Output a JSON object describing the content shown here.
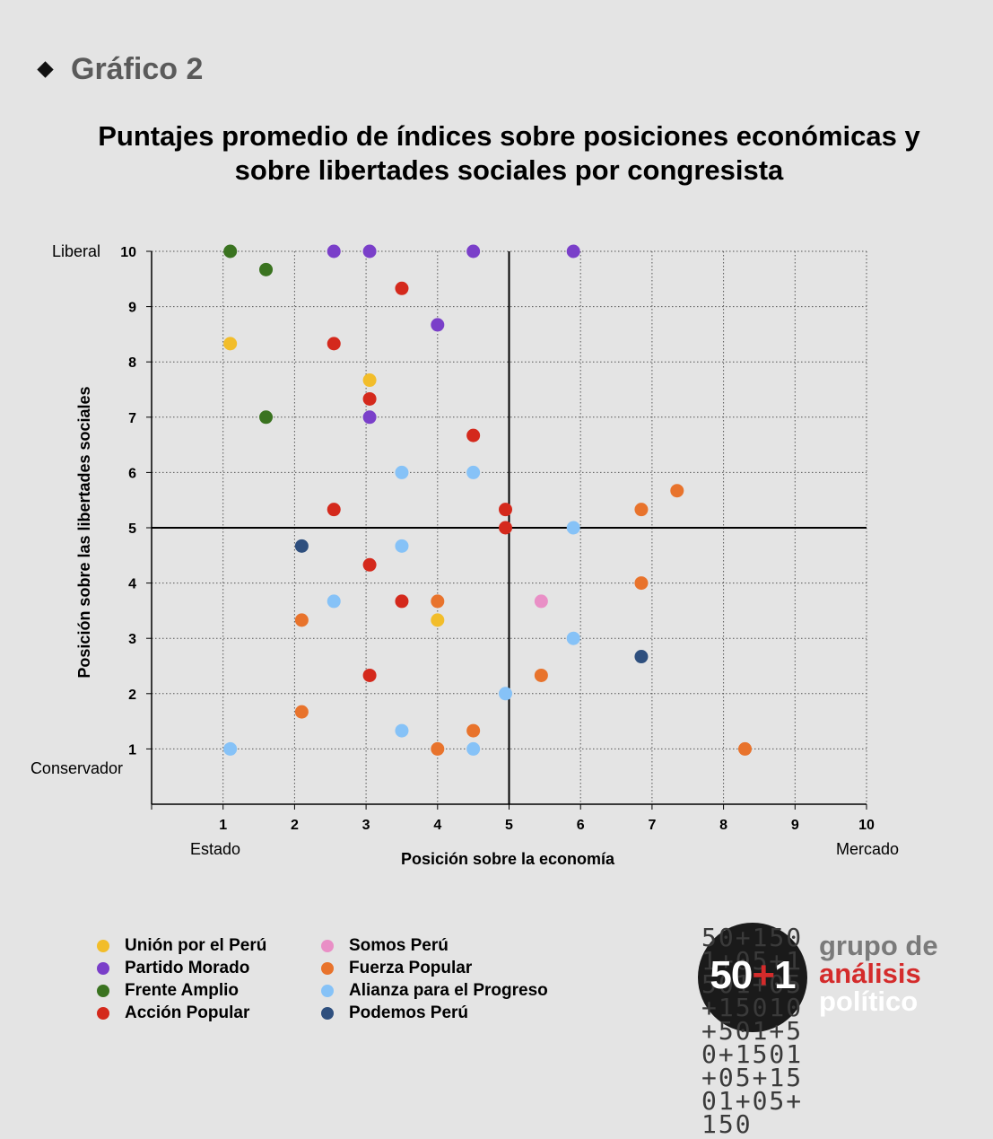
{
  "header": {
    "label": "Gráfico 2"
  },
  "chart_data": {
    "type": "scatter",
    "title": "Puntajes promedio de índices sobre posiciones económicas y sobre libertades sociales por congresista",
    "xlabel": "Posición sobre la economía",
    "ylabel": "Posición sobre las libertades sociales",
    "x_left_annotation": "Estado",
    "x_right_annotation": "Mercado",
    "y_top_annotation": "Liberal",
    "y_bottom_annotation": "Conservador",
    "xlim": [
      0,
      10
    ],
    "ylim": [
      0,
      10
    ],
    "x_ticks": [
      "1",
      "2",
      "3",
      "4",
      "5",
      "6",
      "7",
      "8",
      "9",
      "10"
    ],
    "y_ticks": [
      "1",
      "2",
      "3",
      "4",
      "5",
      "6",
      "7",
      "8",
      "9",
      "10"
    ],
    "grid": true,
    "reference_lines": {
      "x": 5,
      "y": 5
    },
    "legend_position": "bottom-left",
    "series": [
      {
        "name": "Unión por el Perú",
        "color": "#f2bd2a",
        "points": [
          [
            1.1,
            8.33
          ],
          [
            3.05,
            7.67
          ],
          [
            4.0,
            3.33
          ]
        ]
      },
      {
        "name": "Partido Morado",
        "color": "#7a3fc9",
        "points": [
          [
            2.55,
            10
          ],
          [
            3.05,
            10
          ],
          [
            4.5,
            10
          ],
          [
            5.9,
            10
          ],
          [
            4.0,
            8.67
          ],
          [
            3.05,
            7.0
          ]
        ]
      },
      {
        "name": "Frente Amplio",
        "color": "#3a7320",
        "points": [
          [
            1.1,
            10
          ],
          [
            1.6,
            9.67
          ],
          [
            1.6,
            7.0
          ]
        ]
      },
      {
        "name": "Acción Popular",
        "color": "#d4291c",
        "points": [
          [
            3.5,
            9.33
          ],
          [
            2.55,
            8.33
          ],
          [
            3.05,
            7.33
          ],
          [
            4.5,
            6.67
          ],
          [
            2.55,
            5.33
          ],
          [
            4.95,
            5.33
          ],
          [
            4.95,
            5.0
          ],
          [
            3.05,
            4.33
          ],
          [
            3.5,
            3.67
          ],
          [
            3.05,
            2.33
          ]
        ]
      },
      {
        "name": "Somos Perú",
        "color": "#e98fc6",
        "points": [
          [
            5.45,
            3.67
          ]
        ]
      },
      {
        "name": "Fuerza Popular",
        "color": "#e8732c",
        "points": [
          [
            7.35,
            5.67
          ],
          [
            6.85,
            5.33
          ],
          [
            6.85,
            4.0
          ],
          [
            4.0,
            3.67
          ],
          [
            2.1,
            3.33
          ],
          [
            5.45,
            2.33
          ],
          [
            2.1,
            1.67
          ],
          [
            4.5,
            1.33
          ],
          [
            4.0,
            1.0
          ],
          [
            8.3,
            1.0
          ]
        ]
      },
      {
        "name": "Alianza para el Progreso",
        "color": "#86c2f7",
        "points": [
          [
            3.5,
            6.0
          ],
          [
            4.5,
            6.0
          ],
          [
            5.9,
            5.0
          ],
          [
            3.5,
            4.67
          ],
          [
            2.55,
            3.67
          ],
          [
            5.9,
            3.0
          ],
          [
            4.95,
            2.0
          ],
          [
            3.5,
            1.33
          ],
          [
            1.1,
            1.0
          ],
          [
            4.5,
            1.0
          ]
        ]
      },
      {
        "name": "Podemos Perú",
        "color": "#2e4f7e",
        "points": [
          [
            2.1,
            4.67
          ],
          [
            6.85,
            2.67
          ]
        ]
      }
    ]
  },
  "legend": {
    "items": [
      {
        "label": "Unión por el Perú",
        "color": "#f2bd2a"
      },
      {
        "label": "Partido Morado",
        "color": "#7a3fc9"
      },
      {
        "label": "Frente Amplio",
        "color": "#3a7320"
      },
      {
        "label": "Acción Popular",
        "color": "#d4291c"
      },
      {
        "label": "Somos Perú",
        "color": "#e98fc6"
      },
      {
        "label": "Fuerza Popular",
        "color": "#e8732c"
      },
      {
        "label": "Alianza para el Progreso",
        "color": "#86c2f7"
      },
      {
        "label": "Podemos Perú",
        "color": "#2e4f7e"
      }
    ]
  },
  "logo": {
    "number_main": "50",
    "number_plus": "+",
    "number_end": "1",
    "line1": "grupo de",
    "line2": "análisis",
    "line3": "político",
    "pattern_text": "50+1501+05+1501+05+15010+501+50+1501+05+1501+05+150"
  }
}
